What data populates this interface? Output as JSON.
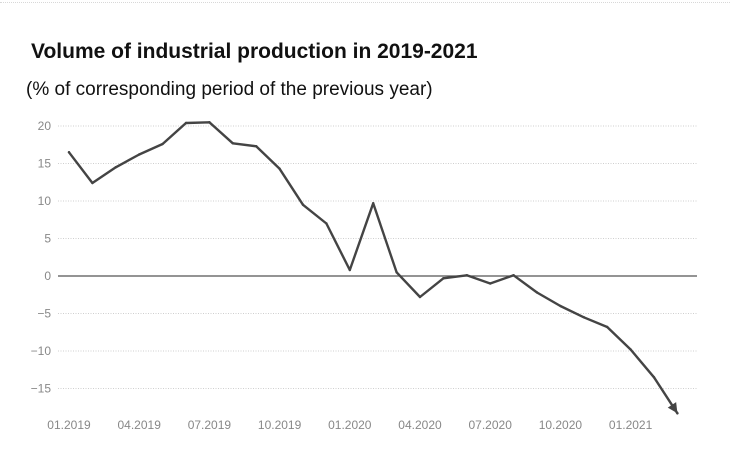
{
  "title": "Volume of industrial production in 2019-2021",
  "subtitle": "(% of corresponding period of the previous year)",
  "colors": {
    "line": "#444444",
    "gridline": "#cfcfcf",
    "zero_line": "#555555",
    "tick_label": "#888888"
  },
  "chart_data": {
    "type": "line",
    "title": "Volume of industrial production in 2019-2021",
    "subtitle": "(% of corresponding period of the previous year)",
    "xlabel": "",
    "ylabel": "",
    "ylim": [
      -18,
      21
    ],
    "yticks": [
      20,
      15,
      10,
      5,
      0,
      -5,
      -10,
      -15
    ],
    "ytick_labels": [
      "20",
      "15",
      "10",
      "5",
      "0",
      "−5",
      "−10",
      "−15"
    ],
    "xtick_labels": [
      "01.2019",
      "04.2019",
      "07.2019",
      "10.2019",
      "01.2020",
      "04.2020",
      "07.2020",
      "10.2020",
      "01.2021"
    ],
    "x_unit": "month",
    "grid": true,
    "series": [
      {
        "x": [
          "01.2019",
          "02.2019",
          "03.2019",
          "04.2019",
          "05.2019",
          "06.2019",
          "07.2019",
          "08.2019",
          "09.2019",
          "10.2019",
          "11.2019",
          "12.2019",
          "01.2020",
          "02.2020",
          "03.2020",
          "04.2020",
          "05.2020",
          "06.2020",
          "07.2020",
          "08.2020",
          "09.2020",
          "10.2020",
          "11.2020",
          "12.2020",
          "01.2021",
          "02.2021",
          "03.2021"
        ],
        "y": [
          16.5,
          12.4,
          14.5,
          16.2,
          17.6,
          20.4,
          20.5,
          17.7,
          17.3,
          14.3,
          9.5,
          7.0,
          0.8,
          9.7,
          0.5,
          -2.8,
          -0.3,
          0.1,
          -1.0,
          0.1,
          -2.2,
          -4.0,
          -5.5,
          -6.8,
          -9.8,
          -13.5,
          -18.3
        ]
      }
    ]
  }
}
